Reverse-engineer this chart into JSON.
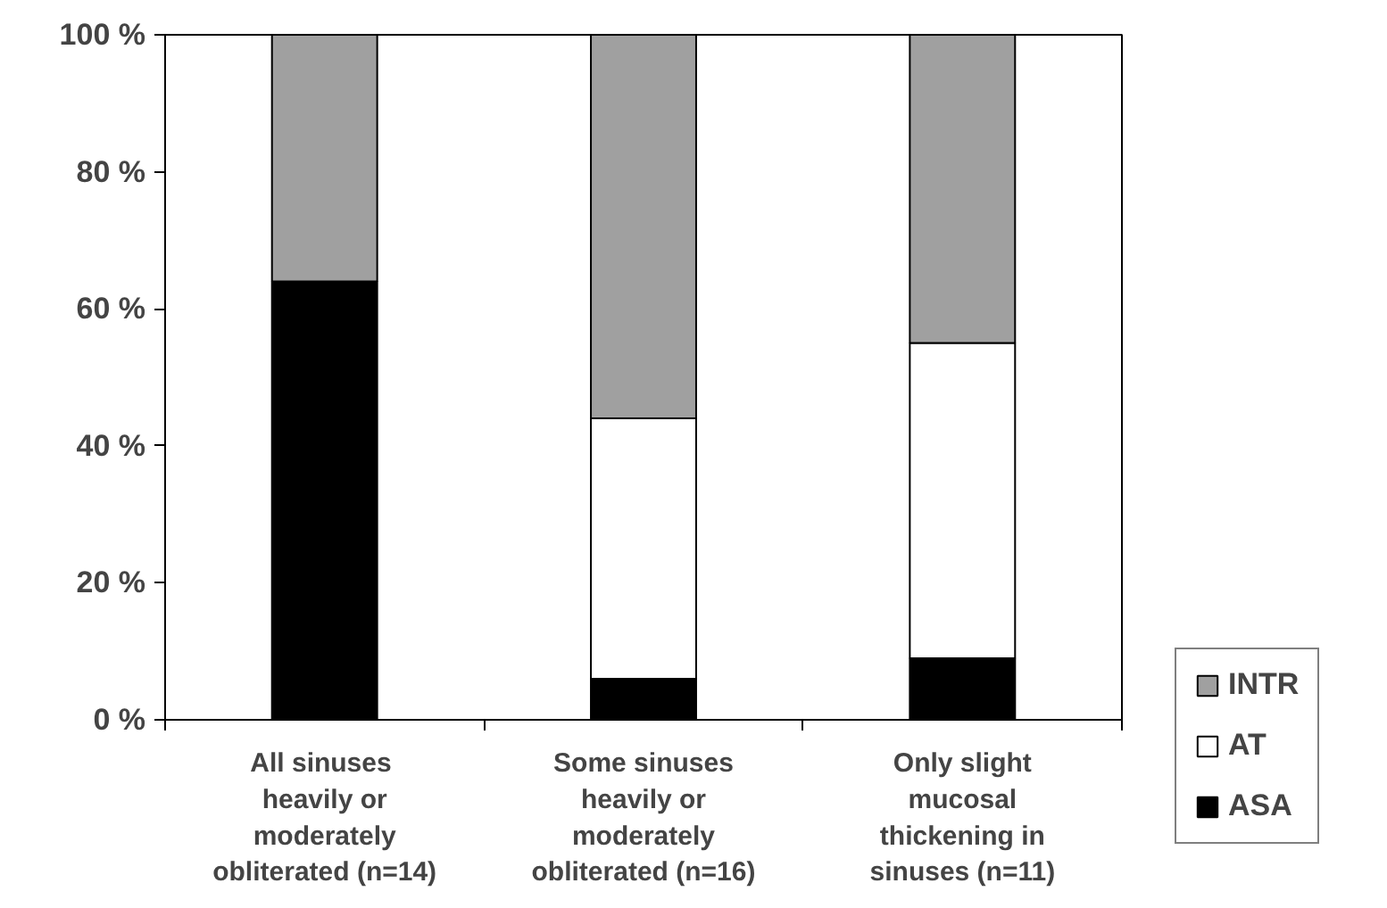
{
  "chart_data": {
    "type": "bar",
    "stacked": true,
    "categories": [
      "All  sinuses\nheavily or\nmoderately\nobliterated (n=14)",
      "Some sinuses\nheavily or\nmoderately\nobliterated (n=16)",
      "Only slight\nmucosal\nthickening in\nsinuses (n=11)"
    ],
    "series": [
      {
        "name": "ASA",
        "color": "#000000",
        "values": [
          64,
          6,
          9
        ]
      },
      {
        "name": "AT",
        "color": "#ffffff",
        "values": [
          0,
          38,
          46
        ]
      },
      {
        "name": "INTR",
        "color": "#a0a0a0",
        "values": [
          36,
          56,
          45
        ]
      }
    ],
    "ylim": [
      0,
      100
    ],
    "yticks": [
      {
        "value": 0,
        "label": "0 %"
      },
      {
        "value": 20,
        "label": "20 %"
      },
      {
        "value": 40,
        "label": "40 %"
      },
      {
        "value": 60,
        "label": "60 %"
      },
      {
        "value": 80,
        "label": "80 %"
      },
      {
        "value": 100,
        "label": "100 %"
      }
    ],
    "grid": false,
    "legend": "right"
  }
}
